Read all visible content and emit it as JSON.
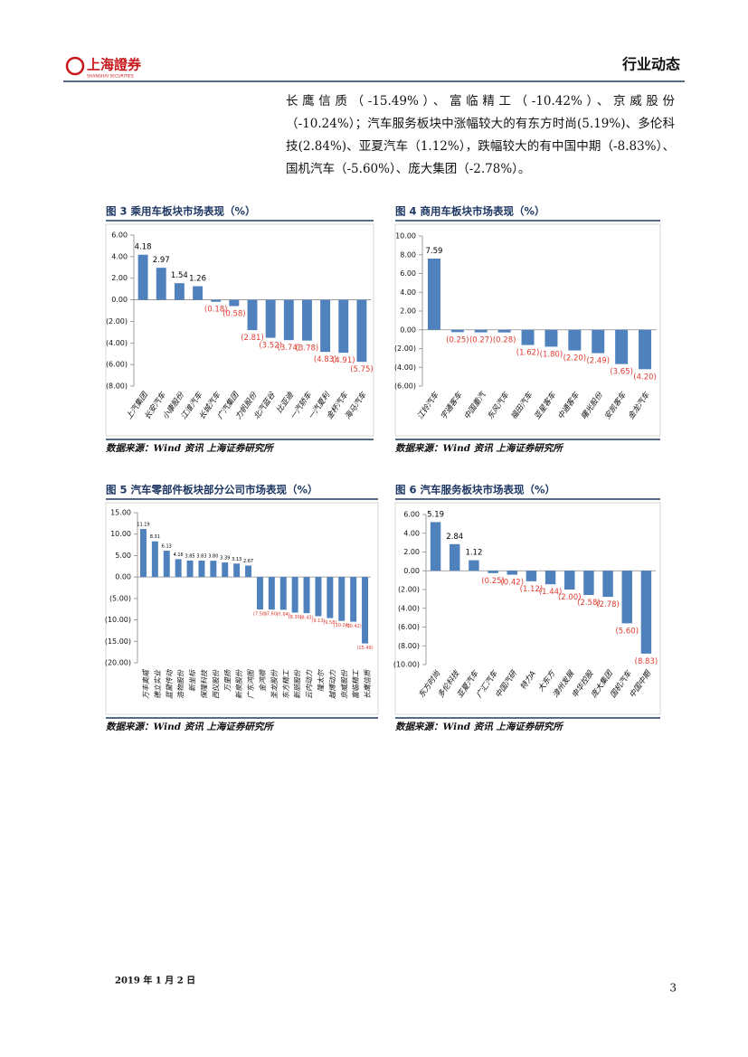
{
  "header": {
    "logo": "上海證券",
    "logo_en": "SHANGHAI SECURITIES",
    "section": "行业动态"
  },
  "paragraph": "长鹰信质（-15.49%）、富临精工（-10.42%）、京威股份（-10.24%）；汽车服务板块中涨幅较大的有东方时尚(5.19%)、多伦科技(2.84%)、亚夏汽车（1.12%），跌幅较大的有中国中期（-8.83%）、国机汽车（-5.60%）、庞大集团（-2.78%）。",
  "chart_data": [
    {
      "type": "bar",
      "title": "图 3 乘用车板块市场表现（%）",
      "source": "数据来源：Wind 资讯 上海证券研究所",
      "categories": [
        "上汽集团",
        "长安汽车",
        "小康股份",
        "江淮汽车",
        "长城汽车",
        "广汽集团",
        "力帆股份",
        "北汽蓝谷",
        "比亚迪",
        "一汽轿车",
        "一汽夏利",
        "金杯汽车",
        "海马汽车"
      ],
      "values": [
        4.18,
        2.97,
        1.54,
        1.26,
        -0.18,
        -0.58,
        -2.81,
        -3.52,
        -3.74,
        -3.78,
        -4.83,
        -4.91,
        -5.75
      ],
      "value_labels": [
        "4.18",
        "2.97",
        "1.54",
        "1.26",
        "(0.18)",
        "(0.58)",
        "(2.81)",
        "(3.52)",
        "(3.74)",
        "(3.78)",
        "(4.83)",
        "(4.91)",
        "(5.75)"
      ],
      "color": "#4f81bd",
      "label_color": "#000000",
      "negative_label_color": "#e03c31",
      "ylim": [
        -8,
        6
      ],
      "yticks": [
        {
          "value": 6,
          "label": "6.00"
        },
        {
          "value": 4,
          "label": "4.00"
        },
        {
          "value": 2,
          "label": "2.00"
        },
        {
          "value": 0,
          "label": "0.00"
        },
        {
          "value": -2,
          "label": "(2.00)"
        },
        {
          "value": -4,
          "label": "(4.00)"
        },
        {
          "value": -6,
          "label": "(6.00)"
        },
        {
          "value": -8,
          "label": "(8.00)"
        }
      ]
    },
    {
      "type": "bar",
      "title": "图 4 商用车板块市场表现（%）",
      "source": "数据来源：Wind 资讯 上海证券研究所",
      "categories": [
        "江铃汽车",
        "宇通客车",
        "中国重汽",
        "东风汽车",
        "福田汽车",
        "亚星客车",
        "中通客车",
        "曙光股份",
        "安凯客车",
        "金龙汽车"
      ],
      "values": [
        7.59,
        -0.25,
        -0.27,
        -0.28,
        -1.62,
        -1.8,
        -2.2,
        -2.49,
        -3.65,
        -4.2
      ],
      "value_labels": [
        "7.59",
        "(0.25)",
        "(0.27)",
        "(0.28)",
        "(1.62)",
        "(1.80)",
        "(2.20)",
        "(2.49)",
        "(3.65)",
        "(4.20)"
      ],
      "color": "#4f81bd",
      "label_color": "#000000",
      "negative_label_color": "#e03c31",
      "ylim": [
        -6,
        10
      ],
      "yticks": [
        {
          "value": 10,
          "label": "10.00"
        },
        {
          "value": 8,
          "label": "8.00"
        },
        {
          "value": 6,
          "label": "6.00"
        },
        {
          "value": 4,
          "label": "4.00"
        },
        {
          "value": 2,
          "label": "2.00"
        },
        {
          "value": 0,
          "label": "0.00"
        },
        {
          "value": -2,
          "label": "(2.00)"
        },
        {
          "value": -4,
          "label": "(4.00)"
        },
        {
          "value": -6,
          "label": "(6.00)"
        }
      ]
    },
    {
      "type": "bar",
      "title": "图 5 汽车零部件板块部分公司市场表现（%）",
      "source": "数据来源：Wind 资讯 上海证券研究所",
      "categories": [
        "万丰奥威",
        "德立实业",
        "蓝黛传动",
        "浩物股份",
        "新坐标",
        "保隆科技",
        "西仪股份",
        "万里扬",
        "新泉股份",
        "广东鸿图",
        "金鸿顺",
        "圣龙股份",
        "东方精工",
        "新朋股份",
        "云内动力",
        "隆太尔",
        "越博动力",
        "京威股份",
        "富临精工",
        "长鹰信质"
      ],
      "values": [
        11.19,
        8.31,
        6.13,
        4.16,
        3.85,
        3.83,
        3.8,
        3.39,
        3.13,
        2.67,
        -7.58,
        -7.6,
        -7.64,
        -8.3,
        -8.43,
        -9.13,
        -9.58,
        -10.24,
        -10.42,
        -15.49
      ],
      "value_labels": [
        "11.19",
        "8.31",
        "6.13",
        "4.16",
        "3.85",
        "3.83",
        "3.80",
        "3.39",
        "3.13",
        "2.67",
        "(7.58)",
        "(7.60)",
        "(7.64)",
        "(8.30)",
        "(8.43)",
        "(9.13)",
        "(9.58)",
        "(10.24)",
        "(10.42)",
        "(15.49)"
      ],
      "color": "#4f81bd",
      "label_color": "#000000",
      "negative_label_color": "#e03c31",
      "ylim": [
        -20,
        15
      ],
      "yticks": [
        {
          "value": 15,
          "label": "15.00"
        },
        {
          "value": 10,
          "label": "10.00"
        },
        {
          "value": 5,
          "label": "5.00"
        },
        {
          "value": 0,
          "label": "0.00"
        },
        {
          "value": -5,
          "label": "(5.00)"
        },
        {
          "value": -10,
          "label": "(10.00)"
        },
        {
          "value": -15,
          "label": "(15.00)"
        },
        {
          "value": -20,
          "label": "(20.00)"
        }
      ]
    },
    {
      "type": "bar",
      "title": "图 6 汽车服务板块市场表现（%）",
      "source": "数据来源：Wind 资讯 上海证券研究所",
      "categories": [
        "东方时尚",
        "多伦科技",
        "亚夏汽车",
        "广汇汽车",
        "中国汽研",
        "特力A",
        "大东方",
        "漳州发展",
        "申华控股",
        "庞大集团",
        "国机汽车",
        "中国中期"
      ],
      "values": [
        5.19,
        2.84,
        1.12,
        -0.25,
        -0.42,
        -1.12,
        -1.44,
        -2.0,
        -2.58,
        -2.78,
        -5.6,
        -8.83
      ],
      "value_labels": [
        "5.19",
        "2.84",
        "1.12",
        "(0.25)",
        "(0.42)",
        "(1.12)",
        "(1.44)",
        "(2.00)",
        "(2.58)",
        "(2.78)",
        "(5.60)",
        "(8.83)"
      ],
      "color": "#4f81bd",
      "label_color": "#000000",
      "negative_label_color": "#e03c31",
      "ylim": [
        -10,
        6
      ],
      "yticks": [
        {
          "value": 6,
          "label": "6.00"
        },
        {
          "value": 4,
          "label": "4.00"
        },
        {
          "value": 2,
          "label": "2.00"
        },
        {
          "value": 0,
          "label": "0.00"
        },
        {
          "value": -2,
          "label": "(2.00)"
        },
        {
          "value": -4,
          "label": "(4.00)"
        },
        {
          "value": -6,
          "label": "(6.00)"
        },
        {
          "value": -8,
          "label": "(8.00)"
        },
        {
          "value": -10,
          "label": "(10.00)"
        }
      ]
    }
  ],
  "footer": {
    "date": "2019 年 1 月 2 日",
    "page": "3"
  }
}
